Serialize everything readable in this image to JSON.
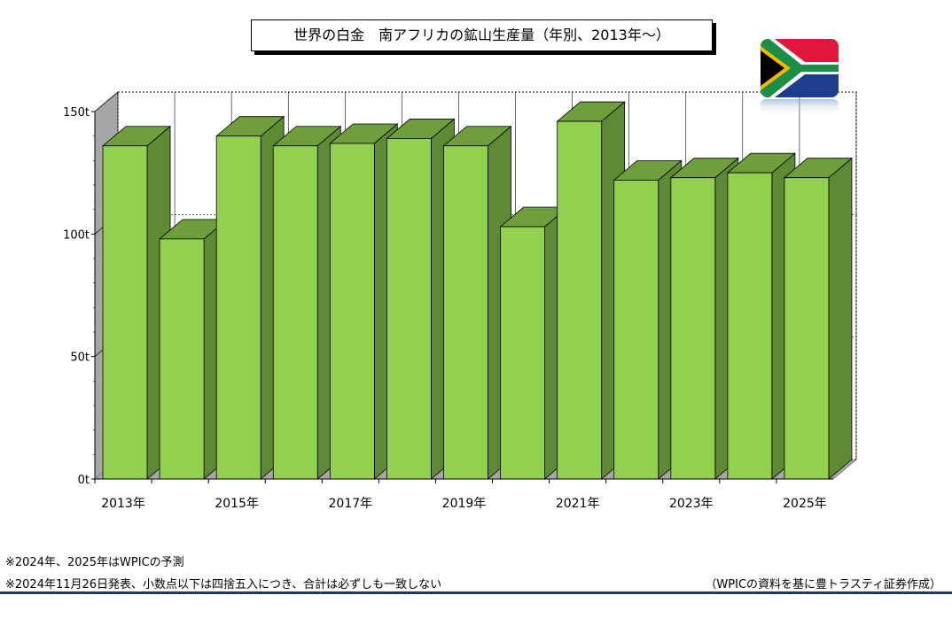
{
  "title": "世界の白金　南アフリカの鉱山生産量（年別、2013年～）",
  "notes": [
    "※2024年、2025年はWPICの予測",
    "※2024年11月26日発表、小数点以下は四捨五入につき、合計は必ずしも一致しない"
  ],
  "source": "（WPICの資料を基に豊トラスティ証券作成）",
  "colors": {
    "bar_front": "#92d050",
    "bar_side": "#5e8a33",
    "bar_top": "#6e9f3c",
    "footer_line": "#1f3864"
  },
  "chart_data": {
    "type": "bar",
    "title": "世界の白金　南アフリカの鉱山生産量（年別、2013年～）",
    "categories": [
      "2013年",
      "2014年",
      "2015年",
      "2016年",
      "2017年",
      "2018年",
      "2019年",
      "2020年",
      "2021年",
      "2022年",
      "2023年",
      "2024年",
      "2025年"
    ],
    "category_labels_shown": [
      "2013年",
      "",
      "2015年",
      "",
      "2017年",
      "",
      "2019年",
      "",
      "2021年",
      "",
      "2023年",
      "",
      "2025年"
    ],
    "values": [
      136,
      98,
      140,
      136,
      137,
      139,
      136,
      103,
      146,
      122,
      123,
      125,
      123
    ],
    "ylim": [
      0,
      150
    ],
    "yticks": [
      0,
      50,
      100,
      150
    ],
    "ytick_labels": [
      "0t",
      "50t",
      "100t",
      "150t"
    ],
    "grid": true,
    "style": "3d-clustered"
  }
}
